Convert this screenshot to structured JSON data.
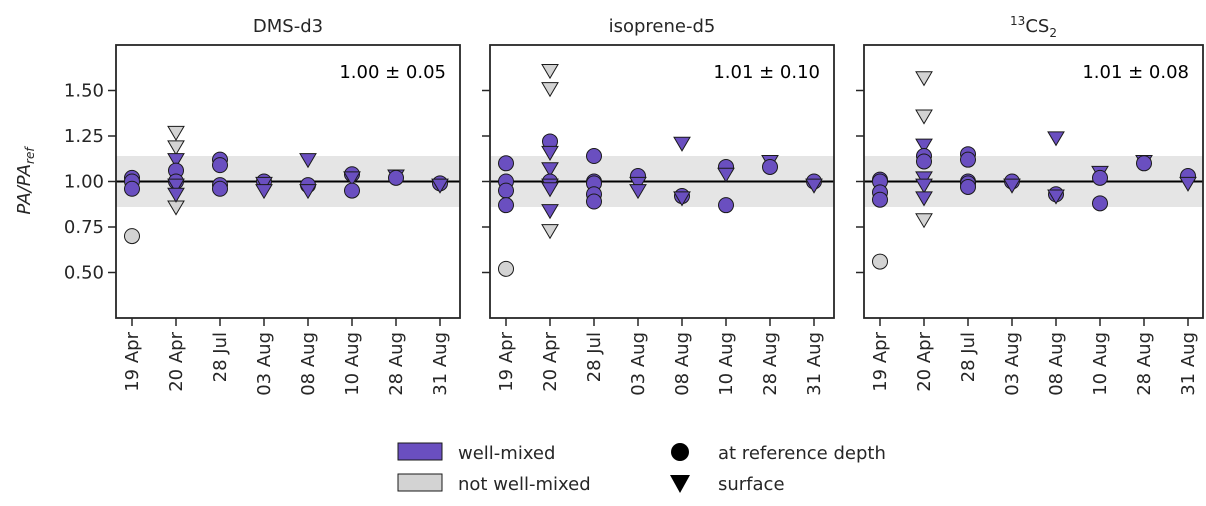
{
  "colors": {
    "well_mixed": "#6a4fc0",
    "not_well_mixed": "#d3d3d3",
    "band": "#e5e5e5",
    "line": "#000000",
    "axes": "#262626"
  },
  "chart_data": [
    {
      "type": "scatter",
      "title": "DMS-d3",
      "annotation": "1.00 ± 0.05",
      "ylabel": "PA/PA_ref",
      "categories": [
        "19 Apr",
        "20 Apr",
        "28 Jul",
        "03 Aug",
        "08 Aug",
        "10 Aug",
        "28 Aug",
        "31 Aug"
      ],
      "ylim": [
        0.25,
        1.75
      ],
      "yticks": [
        "0.50",
        "0.75",
        "1.00",
        "1.25",
        "1.50"
      ],
      "reference_line": 1.0,
      "band": [
        0.86,
        1.14
      ],
      "points": [
        {
          "x": "19 Apr",
          "y": 1.02,
          "marker": "circle",
          "group": "well-mixed"
        },
        {
          "x": "19 Apr",
          "y": 1.0,
          "marker": "circle",
          "group": "well-mixed"
        },
        {
          "x": "19 Apr",
          "y": 0.96,
          "marker": "circle",
          "group": "well-mixed"
        },
        {
          "x": "19 Apr",
          "y": 0.7,
          "marker": "circle",
          "group": "not well-mixed"
        },
        {
          "x": "20 Apr",
          "y": 1.27,
          "marker": "triangle",
          "group": "not well-mixed"
        },
        {
          "x": "20 Apr",
          "y": 1.19,
          "marker": "triangle",
          "group": "not well-mixed"
        },
        {
          "x": "20 Apr",
          "y": 0.86,
          "marker": "triangle",
          "group": "not well-mixed"
        },
        {
          "x": "20 Apr",
          "y": 1.12,
          "marker": "triangle",
          "group": "well-mixed"
        },
        {
          "x": "20 Apr",
          "y": 1.06,
          "marker": "circle",
          "group": "well-mixed"
        },
        {
          "x": "20 Apr",
          "y": 1.0,
          "marker": "circle",
          "group": "well-mixed"
        },
        {
          "x": "20 Apr",
          "y": 0.98,
          "marker": "triangle",
          "group": "well-mixed"
        },
        {
          "x": "20 Apr",
          "y": 0.93,
          "marker": "triangle",
          "group": "well-mixed"
        },
        {
          "x": "28 Jul",
          "y": 1.12,
          "marker": "circle",
          "group": "well-mixed"
        },
        {
          "x": "28 Jul",
          "y": 1.09,
          "marker": "circle",
          "group": "well-mixed"
        },
        {
          "x": "28 Jul",
          "y": 0.98,
          "marker": "circle",
          "group": "well-mixed"
        },
        {
          "x": "28 Jul",
          "y": 0.96,
          "marker": "circle",
          "group": "well-mixed"
        },
        {
          "x": "03 Aug",
          "y": 1.0,
          "marker": "circle",
          "group": "well-mixed"
        },
        {
          "x": "03 Aug",
          "y": 0.99,
          "marker": "triangle",
          "group": "well-mixed"
        },
        {
          "x": "03 Aug",
          "y": 0.95,
          "marker": "triangle",
          "group": "well-mixed"
        },
        {
          "x": "08 Aug",
          "y": 1.12,
          "marker": "triangle",
          "group": "well-mixed"
        },
        {
          "x": "08 Aug",
          "y": 0.98,
          "marker": "circle",
          "group": "well-mixed"
        },
        {
          "x": "08 Aug",
          "y": 0.95,
          "marker": "triangle",
          "group": "well-mixed"
        },
        {
          "x": "10 Aug",
          "y": 1.04,
          "marker": "circle",
          "group": "well-mixed"
        },
        {
          "x": "10 Aug",
          "y": 1.02,
          "marker": "triangle",
          "group": "well-mixed"
        },
        {
          "x": "10 Aug",
          "y": 0.95,
          "marker": "circle",
          "group": "well-mixed"
        },
        {
          "x": "28 Aug",
          "y": 1.03,
          "marker": "triangle",
          "group": "well-mixed"
        },
        {
          "x": "28 Aug",
          "y": 1.02,
          "marker": "circle",
          "group": "well-mixed"
        },
        {
          "x": "31 Aug",
          "y": 0.99,
          "marker": "circle",
          "group": "well-mixed"
        },
        {
          "x": "31 Aug",
          "y": 0.98,
          "marker": "triangle",
          "group": "well-mixed"
        }
      ]
    },
    {
      "type": "scatter",
      "title": "isoprene-d5",
      "annotation": "1.01 ± 0.10",
      "categories": [
        "19 Apr",
        "20 Apr",
        "28 Jul",
        "03 Aug",
        "08 Aug",
        "10 Aug",
        "28 Aug",
        "31 Aug"
      ],
      "ylim": [
        0.25,
        1.75
      ],
      "reference_line": 1.0,
      "band": [
        0.86,
        1.14
      ],
      "points": [
        {
          "x": "19 Apr",
          "y": 1.1,
          "marker": "circle",
          "group": "well-mixed"
        },
        {
          "x": "19 Apr",
          "y": 1.0,
          "marker": "circle",
          "group": "well-mixed"
        },
        {
          "x": "19 Apr",
          "y": 0.95,
          "marker": "circle",
          "group": "well-mixed"
        },
        {
          "x": "19 Apr",
          "y": 0.87,
          "marker": "circle",
          "group": "well-mixed"
        },
        {
          "x": "19 Apr",
          "y": 0.52,
          "marker": "circle",
          "group": "not well-mixed"
        },
        {
          "x": "20 Apr",
          "y": 1.61,
          "marker": "triangle",
          "group": "not well-mixed"
        },
        {
          "x": "20 Apr",
          "y": 1.51,
          "marker": "triangle",
          "group": "not well-mixed"
        },
        {
          "x": "20 Apr",
          "y": 0.73,
          "marker": "triangle",
          "group": "not well-mixed"
        },
        {
          "x": "20 Apr",
          "y": 1.22,
          "marker": "circle",
          "group": "well-mixed"
        },
        {
          "x": "20 Apr",
          "y": 1.16,
          "marker": "triangle",
          "group": "well-mixed"
        },
        {
          "x": "20 Apr",
          "y": 1.07,
          "marker": "triangle",
          "group": "well-mixed"
        },
        {
          "x": "20 Apr",
          "y": 1.0,
          "marker": "circle",
          "group": "well-mixed"
        },
        {
          "x": "20 Apr",
          "y": 0.98,
          "marker": "triangle",
          "group": "well-mixed"
        },
        {
          "x": "20 Apr",
          "y": 0.96,
          "marker": "triangle",
          "group": "well-mixed"
        },
        {
          "x": "20 Apr",
          "y": 0.84,
          "marker": "triangle",
          "group": "well-mixed"
        },
        {
          "x": "28 Jul",
          "y": 1.14,
          "marker": "circle",
          "group": "well-mixed"
        },
        {
          "x": "28 Jul",
          "y": 1.0,
          "marker": "circle",
          "group": "well-mixed"
        },
        {
          "x": "28 Jul",
          "y": 0.99,
          "marker": "circle",
          "group": "well-mixed"
        },
        {
          "x": "28 Jul",
          "y": 0.93,
          "marker": "circle",
          "group": "well-mixed"
        },
        {
          "x": "28 Jul",
          "y": 0.89,
          "marker": "circle",
          "group": "well-mixed"
        },
        {
          "x": "03 Aug",
          "y": 1.03,
          "marker": "circle",
          "group": "well-mixed"
        },
        {
          "x": "03 Aug",
          "y": 0.99,
          "marker": "triangle",
          "group": "well-mixed"
        },
        {
          "x": "03 Aug",
          "y": 0.95,
          "marker": "triangle",
          "group": "well-mixed"
        },
        {
          "x": "08 Aug",
          "y": 1.21,
          "marker": "triangle",
          "group": "well-mixed"
        },
        {
          "x": "08 Aug",
          "y": 0.92,
          "marker": "circle",
          "group": "well-mixed"
        },
        {
          "x": "08 Aug",
          "y": 0.91,
          "marker": "triangle",
          "group": "well-mixed"
        },
        {
          "x": "10 Aug",
          "y": 1.08,
          "marker": "circle",
          "group": "well-mixed"
        },
        {
          "x": "10 Aug",
          "y": 1.04,
          "marker": "triangle",
          "group": "well-mixed"
        },
        {
          "x": "10 Aug",
          "y": 0.87,
          "marker": "circle",
          "group": "well-mixed"
        },
        {
          "x": "28 Aug",
          "y": 1.11,
          "marker": "triangle",
          "group": "well-mixed"
        },
        {
          "x": "28 Aug",
          "y": 1.08,
          "marker": "circle",
          "group": "well-mixed"
        },
        {
          "x": "31 Aug",
          "y": 1.0,
          "marker": "circle",
          "group": "well-mixed"
        },
        {
          "x": "31 Aug",
          "y": 0.98,
          "marker": "triangle",
          "group": "well-mixed"
        }
      ]
    },
    {
      "type": "scatter",
      "title": "13CS2",
      "annotation": "1.01 ± 0.08",
      "categories": [
        "19 Apr",
        "20 Apr",
        "28 Jul",
        "03 Aug",
        "08 Aug",
        "10 Aug",
        "28 Aug",
        "31 Aug"
      ],
      "ylim": [
        0.25,
        1.75
      ],
      "reference_line": 1.0,
      "band": [
        0.86,
        1.14
      ],
      "points": [
        {
          "x": "19 Apr",
          "y": 1.01,
          "marker": "circle",
          "group": "well-mixed"
        },
        {
          "x": "19 Apr",
          "y": 1.0,
          "marker": "circle",
          "group": "well-mixed"
        },
        {
          "x": "19 Apr",
          "y": 0.94,
          "marker": "circle",
          "group": "well-mixed"
        },
        {
          "x": "19 Apr",
          "y": 0.9,
          "marker": "circle",
          "group": "well-mixed"
        },
        {
          "x": "19 Apr",
          "y": 0.56,
          "marker": "circle",
          "group": "not well-mixed"
        },
        {
          "x": "20 Apr",
          "y": 1.57,
          "marker": "triangle",
          "group": "not well-mixed"
        },
        {
          "x": "20 Apr",
          "y": 1.36,
          "marker": "triangle",
          "group": "not well-mixed"
        },
        {
          "x": "20 Apr",
          "y": 0.79,
          "marker": "triangle",
          "group": "not well-mixed"
        },
        {
          "x": "20 Apr",
          "y": 1.2,
          "marker": "triangle",
          "group": "well-mixed"
        },
        {
          "x": "20 Apr",
          "y": 1.14,
          "marker": "circle",
          "group": "well-mixed"
        },
        {
          "x": "20 Apr",
          "y": 1.11,
          "marker": "circle",
          "group": "well-mixed"
        },
        {
          "x": "20 Apr",
          "y": 1.02,
          "marker": "triangle",
          "group": "well-mixed"
        },
        {
          "x": "20 Apr",
          "y": 0.98,
          "marker": "triangle",
          "group": "well-mixed"
        },
        {
          "x": "20 Apr",
          "y": 0.91,
          "marker": "triangle",
          "group": "well-mixed"
        },
        {
          "x": "28 Jul",
          "y": 1.15,
          "marker": "circle",
          "group": "well-mixed"
        },
        {
          "x": "28 Jul",
          "y": 1.12,
          "marker": "circle",
          "group": "well-mixed"
        },
        {
          "x": "28 Jul",
          "y": 1.0,
          "marker": "circle",
          "group": "well-mixed"
        },
        {
          "x": "28 Jul",
          "y": 0.99,
          "marker": "circle",
          "group": "well-mixed"
        },
        {
          "x": "28 Jul",
          "y": 0.97,
          "marker": "circle",
          "group": "well-mixed"
        },
        {
          "x": "03 Aug",
          "y": 1.0,
          "marker": "circle",
          "group": "well-mixed"
        },
        {
          "x": "03 Aug",
          "y": 0.98,
          "marker": "triangle",
          "group": "well-mixed"
        },
        {
          "x": "08 Aug",
          "y": 1.24,
          "marker": "triangle",
          "group": "well-mixed"
        },
        {
          "x": "08 Aug",
          "y": 0.93,
          "marker": "circle",
          "group": "well-mixed"
        },
        {
          "x": "08 Aug",
          "y": 0.92,
          "marker": "triangle",
          "group": "well-mixed"
        },
        {
          "x": "10 Aug",
          "y": 1.05,
          "marker": "triangle",
          "group": "well-mixed"
        },
        {
          "x": "10 Aug",
          "y": 1.02,
          "marker": "circle",
          "group": "well-mixed"
        },
        {
          "x": "10 Aug",
          "y": 0.88,
          "marker": "circle",
          "group": "well-mixed"
        },
        {
          "x": "28 Aug",
          "y": 1.11,
          "marker": "triangle",
          "group": "well-mixed"
        },
        {
          "x": "28 Aug",
          "y": 1.1,
          "marker": "circle",
          "group": "well-mixed"
        },
        {
          "x": "31 Aug",
          "y": 1.03,
          "marker": "circle",
          "group": "well-mixed"
        },
        {
          "x": "31 Aug",
          "y": 0.99,
          "marker": "triangle",
          "group": "well-mixed"
        }
      ]
    }
  ],
  "legend": {
    "placement": "bottom-center",
    "items": [
      {
        "label": "well-mixed",
        "kind": "patch",
        "group": "well-mixed"
      },
      {
        "label": "not well-mixed",
        "kind": "patch",
        "group": "not well-mixed"
      },
      {
        "label": "at reference depth",
        "kind": "circle"
      },
      {
        "label": "surface",
        "kind": "triangle"
      }
    ]
  }
}
